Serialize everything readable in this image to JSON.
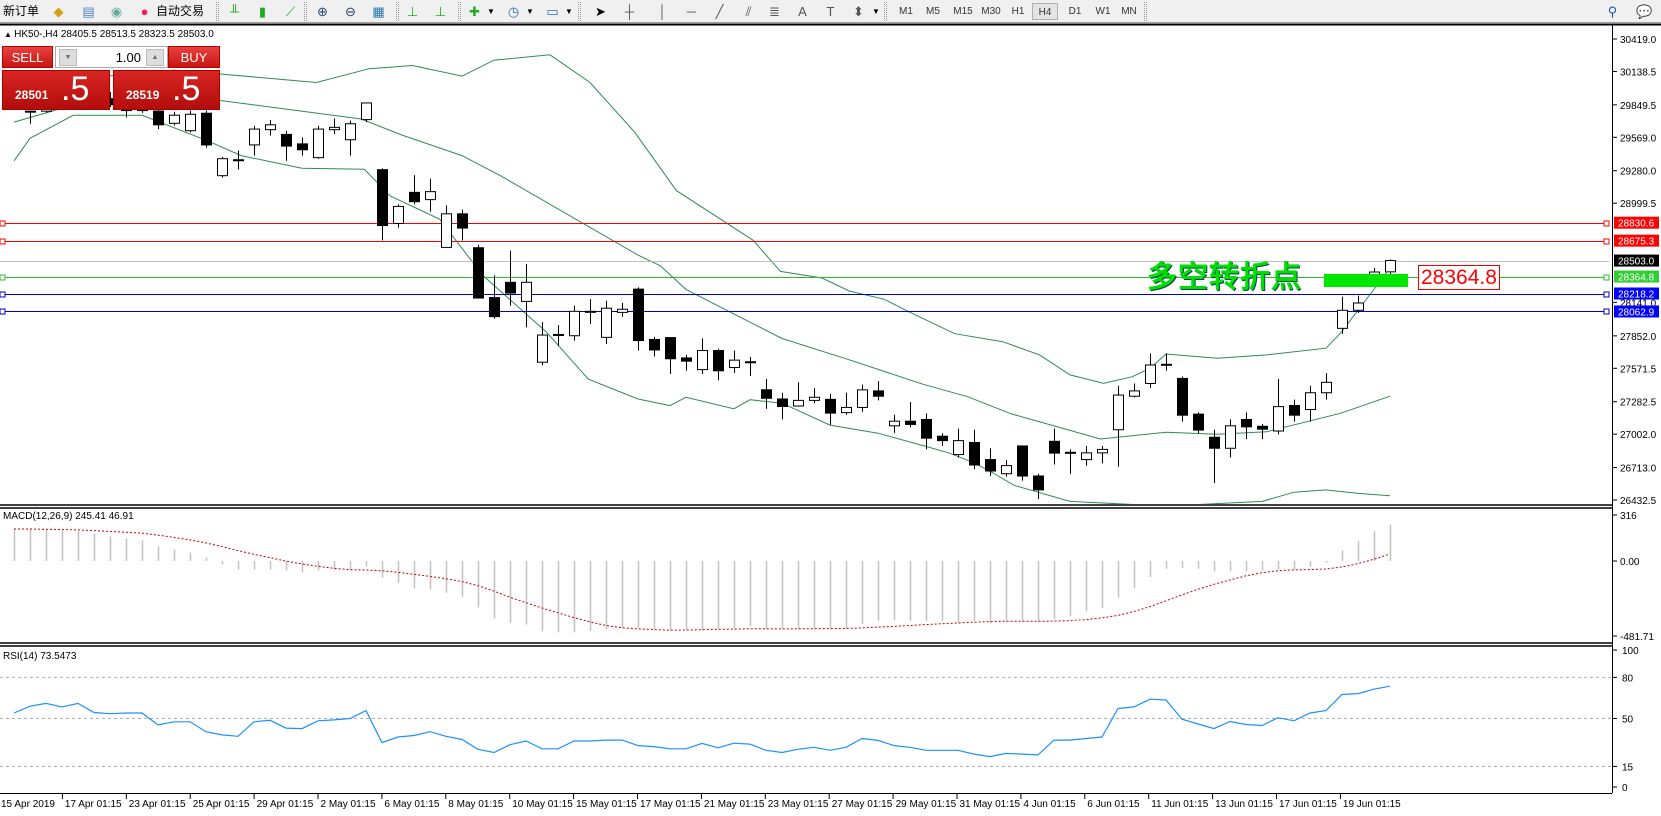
{
  "toolbar": {
    "new_order": "新订单",
    "auto_trading": "自动交易",
    "timeframes": [
      "M1",
      "M5",
      "M15",
      "M30",
      "H1",
      "H4",
      "D1",
      "W1",
      "MN"
    ],
    "active_timeframe": "H4",
    "icons": [
      "metaeditor-icon",
      "navigator-icon",
      "market-watch-icon",
      "auto-trading-icon",
      "bar-chart-icon",
      "candlestick-icon",
      "line-chart-icon",
      "zoom-in-icon",
      "zoom-out-icon",
      "tile-windows-icon",
      "chart-shift-icon",
      "autoscroll-icon",
      "new-chart-icon",
      "periods-icon",
      "templates-icon",
      "cursor-icon",
      "crosshair-icon",
      "vertical-line-icon",
      "horizontal-line-icon",
      "trendline-icon",
      "equidistant-channel-icon",
      "fibonacci-icon",
      "text-icon",
      "text-label-icon",
      "arrows-icon",
      "search-icon",
      "chat-icon"
    ]
  },
  "chart": {
    "header": "HK50-,H4  28405.5 28513.5 28323.5 28503.0",
    "price_ticks": [
      "30419.0",
      "30138.5",
      "29849.5",
      "29569.0",
      "29280.0",
      "28999.5",
      "28141.0",
      "27852.0",
      "27571.5",
      "27282.5",
      "27002.0",
      "26713.0",
      "26432.5"
    ],
    "price_range": [
      26432.5,
      30419.0
    ],
    "levels": [
      {
        "price": 28830.6,
        "label": "28830.6",
        "color": "#ff0000"
      },
      {
        "price": 28675.3,
        "label": "28675.3",
        "color": "#ff0000"
      },
      {
        "price": 28503.0,
        "label": "28503.0",
        "color": "#c0c0c0",
        "bg": "#000000"
      },
      {
        "price": 28364.8,
        "label": "28364.8",
        "color": "#2ebd2e",
        "bg": "#32cd32"
      },
      {
        "price": 28218.2,
        "label": "28218.2",
        "color": "#0000c0",
        "bg": "#0000ff"
      },
      {
        "price": 28062.9,
        "label": "28062.9",
        "color": "#0000c0",
        "bg": "#0000ff"
      }
    ],
    "signal_text": "多空转折点",
    "signal_price": "28364.8",
    "band_color": "#2e8b57",
    "candles_ohlc": [
      [
        29840,
        29870,
        29815,
        29845
      ],
      [
        29790,
        29800,
        29686,
        29795
      ],
      [
        29795,
        29950,
        29780,
        29920
      ],
      [
        29920,
        30050,
        29880,
        30010
      ],
      [
        30010,
        30080,
        29930,
        29960
      ],
      [
        29960,
        30020,
        29880,
        29900
      ],
      [
        29900,
        29960,
        29830,
        29850
      ],
      [
        29850,
        29880,
        29740,
        29800
      ],
      [
        29800,
        29880,
        29780,
        29840
      ],
      [
        29796,
        29840,
        29640,
        29677
      ],
      [
        29690,
        29790,
        29670,
        29760
      ],
      [
        29626,
        29800,
        29610,
        29768
      ],
      [
        29777,
        29800,
        29480,
        29503
      ],
      [
        29237,
        29400,
        29220,
        29384
      ],
      [
        29370,
        29455,
        29290,
        29375
      ],
      [
        29503,
        29668,
        29410,
        29640
      ],
      [
        29635,
        29718,
        29585,
        29677
      ],
      [
        29594,
        29626,
        29365,
        29493
      ],
      [
        29512,
        29567,
        29411,
        29461
      ],
      [
        29393,
        29668,
        29384,
        29640
      ],
      [
        29635,
        29732,
        29597,
        29655
      ],
      [
        29548,
        29713,
        29411,
        29686
      ],
      [
        29722,
        29870,
        29700,
        29866
      ],
      [
        29289,
        29300,
        28678,
        28806
      ],
      [
        28824,
        28990,
        28788,
        28971
      ],
      [
        29093,
        29242,
        28989,
        29012
      ],
      [
        29030,
        29210,
        28925,
        29099
      ],
      [
        28617,
        28980,
        28617,
        28907
      ],
      [
        28907,
        28943,
        28678,
        28784
      ],
      [
        28614,
        28640,
        28179,
        28179
      ],
      [
        28183,
        28375,
        28000,
        28018
      ],
      [
        28315,
        28589,
        28113,
        28222
      ],
      [
        28150,
        28474,
        27926,
        28315
      ],
      [
        27624,
        27972,
        27596,
        27859
      ],
      [
        27862,
        27945,
        27766,
        27864
      ],
      [
        27853,
        28113,
        27811,
        28064
      ],
      [
        28060,
        28170,
        27955,
        28064
      ],
      [
        27839,
        28155,
        27782,
        28091
      ],
      [
        28055,
        28137,
        28018,
        28082
      ],
      [
        28256,
        28271,
        27725,
        27811
      ],
      [
        27821,
        27843,
        27673,
        27730
      ],
      [
        27837,
        27837,
        27522,
        27654
      ],
      [
        27661,
        27688,
        27550,
        27633
      ],
      [
        27560,
        27830,
        27522,
        27725
      ],
      [
        27725,
        27740,
        27468,
        27550
      ],
      [
        27578,
        27725,
        27532,
        27642
      ],
      [
        27624,
        27670,
        27505,
        27628
      ],
      [
        27386,
        27480,
        27220,
        27312
      ],
      [
        27306,
        27360,
        27130,
        27241
      ],
      [
        27245,
        27450,
        27240,
        27294
      ],
      [
        27294,
        27400,
        27270,
        27321
      ],
      [
        27303,
        27350,
        27083,
        27184
      ],
      [
        27188,
        27360,
        27170,
        27233
      ],
      [
        27233,
        27430,
        27196,
        27385
      ],
      [
        27376,
        27460,
        27294,
        27330
      ],
      [
        27074,
        27170,
        27013,
        27114
      ],
      [
        27114,
        27280,
        27060,
        27086
      ],
      [
        27129,
        27180,
        26870,
        26967
      ],
      [
        26984,
        27010,
        26900,
        26946
      ],
      [
        26826,
        27050,
        26800,
        26946
      ],
      [
        26930,
        27040,
        26700,
        26735
      ],
      [
        26782,
        26880,
        26640,
        26683
      ],
      [
        26660,
        26780,
        26635,
        26730
      ],
      [
        26900,
        26900,
        26600,
        26640
      ],
      [
        26640,
        26660,
        26440,
        26520
      ],
      [
        26940,
        27050,
        26740,
        26838
      ],
      [
        26840,
        26870,
        26660,
        26845
      ],
      [
        26782,
        26900,
        26730,
        26840
      ],
      [
        26840,
        26900,
        26750,
        26870
      ],
      [
        27040,
        27420,
        26720,
        27340
      ],
      [
        27330,
        27440,
        27320,
        27376
      ],
      [
        27440,
        27700,
        27400,
        27600
      ],
      [
        27600,
        27700,
        27550,
        27606
      ],
      [
        27484,
        27500,
        27110,
        27166
      ],
      [
        27175,
        27190,
        27010,
        27037
      ],
      [
        26975,
        27040,
        26580,
        26880
      ],
      [
        26880,
        27130,
        26800,
        27074
      ],
      [
        27129,
        27190,
        26960,
        27065
      ],
      [
        27070,
        27090,
        26960,
        27045
      ],
      [
        27029,
        27480,
        27000,
        27240
      ],
      [
        27250,
        27300,
        27110,
        27166
      ],
      [
        27215,
        27420,
        27110,
        27360
      ],
      [
        27360,
        27530,
        27300,
        27450
      ],
      [
        27917,
        28190,
        27870,
        28073
      ],
      [
        28073,
        28200,
        28050,
        28136
      ],
      [
        28300,
        28440,
        28290,
        28404
      ],
      [
        28405.5,
        28513.5,
        28323.5,
        28503.0
      ]
    ],
    "bands": {
      "upper": [
        [
          0,
          30000
        ],
        [
          6,
          30100
        ],
        [
          10,
          30150
        ],
        [
          12.9,
          30116
        ],
        [
          18.9,
          30043
        ],
        [
          22.2,
          30162
        ],
        [
          24.9,
          30190
        ],
        [
          28,
          30098
        ],
        [
          30,
          30236
        ],
        [
          33.5,
          30282
        ],
        [
          36,
          30043
        ],
        [
          38.8,
          29612
        ],
        [
          41.4,
          29108
        ],
        [
          46.2,
          28678
        ],
        [
          47.9,
          28409
        ],
        [
          50.5,
          28352
        ],
        [
          52.2,
          28240
        ],
        [
          54.4,
          28168
        ],
        [
          56,
          28056
        ],
        [
          58.8,
          27871
        ],
        [
          61.8,
          27801
        ],
        [
          64.1,
          27687
        ],
        [
          66,
          27514
        ],
        [
          68.1,
          27442
        ],
        [
          69.9,
          27499
        ],
        [
          71,
          27571
        ],
        [
          72,
          27695
        ],
        [
          75.2,
          27658
        ],
        [
          78.3,
          27687
        ],
        [
          82,
          27745
        ],
        [
          82.9,
          27874
        ],
        [
          85.2,
          28292
        ],
        [
          86,
          28439
        ]
      ],
      "middle": [
        [
          0,
          29700
        ],
        [
          5,
          29900
        ],
        [
          10,
          29920
        ],
        [
          12.9,
          29887
        ],
        [
          21.7,
          29727
        ],
        [
          24.3,
          29585
        ],
        [
          28,
          29411
        ],
        [
          30.4,
          29237
        ],
        [
          39,
          28550
        ],
        [
          40.4,
          28458
        ],
        [
          42,
          28254
        ],
        [
          48,
          27829
        ],
        [
          52.2,
          27645
        ],
        [
          56.8,
          27434
        ],
        [
          59.6,
          27326
        ],
        [
          62.3,
          27179
        ],
        [
          63.7,
          27124
        ],
        [
          67.9,
          26960
        ],
        [
          72,
          27018
        ],
        [
          75.2,
          27001
        ],
        [
          78.3,
          27023
        ],
        [
          82.9,
          27182
        ],
        [
          86,
          27330
        ]
      ],
      "lower": [
        [
          0,
          29365
        ],
        [
          1,
          29560
        ],
        [
          3.7,
          29759
        ],
        [
          8,
          29759
        ],
        [
          12.1,
          29539
        ],
        [
          14.2,
          29411
        ],
        [
          18,
          29301
        ],
        [
          21.9,
          29292
        ],
        [
          23.5,
          29063
        ],
        [
          26.6,
          28861
        ],
        [
          29.3,
          28375
        ],
        [
          33.3,
          27881
        ],
        [
          35.9,
          27477
        ],
        [
          39,
          27306
        ],
        [
          41,
          27249
        ],
        [
          42,
          27321
        ],
        [
          45,
          27221
        ],
        [
          46,
          27300
        ],
        [
          48,
          27270
        ],
        [
          51,
          27080
        ],
        [
          54,
          27010
        ],
        [
          57,
          26896
        ],
        [
          58.5,
          26836
        ],
        [
          60,
          26754
        ],
        [
          61.2,
          26666
        ],
        [
          62.5,
          26560
        ],
        [
          66,
          26420
        ],
        [
          72,
          26380
        ],
        [
          78,
          26420
        ],
        [
          80,
          26500
        ],
        [
          82,
          26520
        ],
        [
          84,
          26490
        ],
        [
          86,
          26470
        ]
      ]
    }
  },
  "macd": {
    "label": "MACD(12,26,9) 245.41 46.91",
    "ticks": [
      "316",
      "0.00",
      "-481.71"
    ],
    "range": [
      -481.71,
      316
    ],
    "bar_color": "#c0c0c0",
    "signal_color": "#cc0000",
    "values": [
      215,
      215,
      209,
      205,
      200,
      183,
      165,
      150,
      139,
      99,
      77,
      57,
      24,
      -22,
      -59,
      -59,
      -59,
      -64,
      -77,
      -64,
      -64,
      -59,
      -37,
      -110,
      -147,
      -185,
      -191,
      -213,
      -240,
      -312,
      -385,
      -416,
      -427,
      -473,
      -480,
      -480,
      -470,
      -460,
      -450,
      -450,
      -460,
      -465,
      -460,
      -465,
      -455,
      -455,
      -440,
      -455,
      -455,
      -455,
      -455,
      -455,
      -456,
      -424,
      -402,
      -398,
      -402,
      -402,
      -402,
      -413,
      -402,
      -419,
      -402,
      -402,
      -406,
      -391,
      -370,
      -338,
      -316,
      -245,
      -183,
      -108,
      -52,
      -47,
      -52,
      -69,
      -69,
      -69,
      -62,
      -58,
      -58,
      -37,
      -11,
      71,
      135,
      200,
      245.41
    ]
  },
  "rsi": {
    "label": "RSI(14) 73.5473",
    "ticks": [
      "100",
      "80",
      "50",
      "15",
      "0"
    ],
    "levels": [
      80,
      50,
      15
    ],
    "line_color": "#1e90ff",
    "values": [
      54,
      59,
      61,
      58.5,
      61,
      54.4,
      53.5,
      54,
      54,
      45.3,
      47.6,
      47.6,
      40.4,
      38,
      37,
      47.6,
      48.7,
      43,
      42.6,
      48.3,
      49,
      50,
      55.8,
      32.4,
      36.5,
      37.6,
      40.4,
      37,
      34.7,
      27.5,
      25.2,
      30.9,
      33.6,
      27.9,
      27.9,
      33.6,
      33.6,
      34.2,
      34.2,
      30.2,
      29.5,
      27.9,
      27.9,
      31.8,
      28.6,
      32,
      31.3,
      26.8,
      25.2,
      27.5,
      29,
      26.8,
      29,
      35.4,
      34,
      30.2,
      29,
      26.8,
      26.8,
      26.8,
      24,
      22.2,
      24.5,
      24,
      23.4,
      34.2,
      34.2,
      35.4,
      36.5,
      57.3,
      58.5,
      64.1,
      63.5,
      49.5,
      46,
      42.6,
      47.8,
      45.6,
      44.9,
      50.6,
      48.3,
      54,
      55.8,
      67.5,
      68.2,
      71.4,
      73.5473
    ]
  },
  "time_axis": [
    "15 Apr 2019",
    "17 Apr 01:15",
    "23 Apr 01:15",
    "25 Apr 01:15",
    "29 Apr 01:15",
    "2 May 01:15",
    "6 May 01:15",
    "8 May 01:15",
    "10 May 01:15",
    "15 May 01:15",
    "17 May 01:15",
    "21 May 01:15",
    "23 May 01:15",
    "27 May 01:15",
    "29 May 01:15",
    "31 May 01:15",
    "4 Jun 01:15",
    "6 Jun 01:15",
    "11 Jun 01:15",
    "13 Jun 01:15",
    "17 Jun 01:15",
    "19 Jun 01:15"
  ],
  "trade_panel": {
    "sell_label": "SELL",
    "buy_label": "BUY",
    "lot": "1.00",
    "sell_price_main": "28501",
    "sell_price_frac": ".5",
    "buy_price_main": "28519",
    "buy_price_frac": ".5",
    "down_arrow": "▼",
    "up_arrow": "▲"
  }
}
